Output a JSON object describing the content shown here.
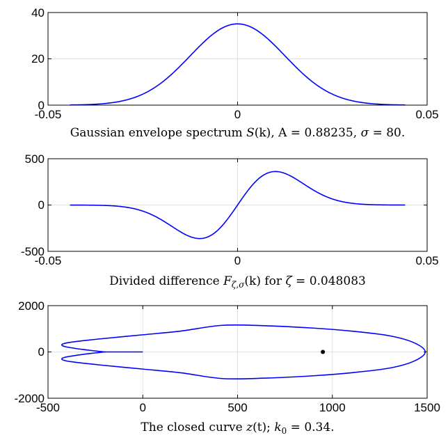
{
  "chart_data": [
    {
      "type": "line",
      "title": "",
      "caption": {
        "prefix": "Gaussian envelope spectrum ",
        "fn": "S",
        "fn_arg": "(k)",
        "a_part": ", A = 0.88235, ",
        "sigma_sym": "σ",
        "sigma_part": " = 80."
      },
      "xlim": [
        -0.05,
        0.05
      ],
      "ylim": [
        0,
        40
      ],
      "xticks": [
        -0.05,
        0,
        0.05
      ],
      "xtick_labels": [
        "-0.05",
        "0",
        "0.05"
      ],
      "yticks": [
        0,
        20,
        40
      ],
      "ytick_labels": [
        "0",
        "20",
        "40"
      ],
      "grid": true,
      "series": [
        {
          "color": "#0000ff",
          "curve": "gaussian",
          "x_range": [
            -0.0442,
            0.0442
          ],
          "peak": 35.1,
          "sigma_k": 0.0125
        }
      ]
    },
    {
      "type": "line",
      "title": "",
      "caption": {
        "prefix": "Divided difference ",
        "fn": "F",
        "fn_sub": "ζ,σ",
        "fn_arg": "(k)",
        "for_part": " for ",
        "zeta_sym": "ζ",
        "zeta_part": " = 0.048083"
      },
      "xlim": [
        -0.05,
        0.05
      ],
      "ylim": [
        -500,
        500
      ],
      "xticks": [
        -0.05,
        0,
        0.05
      ],
      "xtick_labels": [
        "-0.05",
        "0",
        "0.05"
      ],
      "yticks": [
        -500,
        0,
        500
      ],
      "ytick_labels": [
        "-500",
        "0",
        "500"
      ],
      "grid": true,
      "series": [
        {
          "color": "#0000ff",
          "curve": "gaussian_derivative",
          "x_range": [
            -0.0442,
            0.0442
          ],
          "extremum_x": 0.01,
          "extremum_y": 362
        }
      ]
    },
    {
      "type": "line",
      "title": "",
      "caption": {
        "prefix": "The closed curve ",
        "fn": "z",
        "fn_arg": "(t)",
        "k_part": "; ",
        "k_sym": "k",
        "k_sub": "0",
        "k_val": " = 0.34."
      },
      "xlim": [
        -500,
        1500
      ],
      "ylim": [
        -2000,
        2000
      ],
      "xticks": [
        -500,
        0,
        500,
        1000,
        1500
      ],
      "xtick_labels": [
        "-500",
        "0",
        "500",
        "1000",
        "1500"
      ],
      "yticks": [
        -2000,
        0,
        2000
      ],
      "ytick_labels": [
        "-2000",
        "0",
        "2000"
      ],
      "grid": true,
      "series": [
        {
          "color": "#0000ff",
          "curve": "closed",
          "points": [
            [
              0,
              0
            ],
            [
              -200,
              0
            ],
            [
              -230,
              -25
            ],
            [
              -320,
              -110
            ],
            [
              -410,
              -230
            ],
            [
              -425,
              -330
            ],
            [
              -380,
              -420
            ],
            [
              -230,
              -560
            ],
            [
              0,
              -740
            ],
            [
              200,
              -900
            ],
            [
              420,
              -1150
            ],
            [
              650,
              -1130
            ],
            [
              900,
              -1030
            ],
            [
              1100,
              -900
            ],
            [
              1300,
              -700
            ],
            [
              1430,
              -400
            ],
            [
              1490,
              0
            ],
            [
              1430,
              400
            ],
            [
              1300,
              700
            ],
            [
              1100,
              900
            ],
            [
              900,
              1030
            ],
            [
              650,
              1130
            ],
            [
              420,
              1150
            ],
            [
              200,
              900
            ],
            [
              0,
              740
            ],
            [
              -230,
              560
            ],
            [
              -380,
              420
            ],
            [
              -425,
              330
            ],
            [
              -410,
              230
            ],
            [
              -320,
              110
            ],
            [
              -230,
              25
            ],
            [
              -200,
              0
            ]
          ]
        }
      ],
      "marker": {
        "x": 950,
        "y": 0,
        "color": "#000000"
      }
    }
  ]
}
